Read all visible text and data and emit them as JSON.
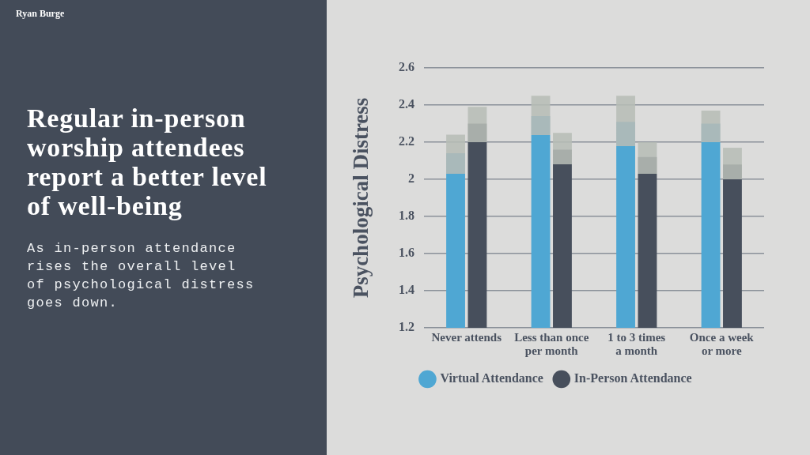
{
  "chart_data": {
    "type": "bar",
    "title": "Regular in-person worship attendees report a better level of well-being",
    "subtitle": "As in-person attendance rises the overall level of psychological distress goes down.",
    "ylabel": "Psychological Distress",
    "annotations": [
      "Ryan Burge"
    ],
    "categories": [
      "Never attends",
      "Less than once per month",
      "1 to 3 times a month",
      "Once a week or more"
    ],
    "series": [
      {
        "name": "Virtual Attendance",
        "color": "#4fa7d3",
        "values": [
          2.14,
          2.34,
          2.31,
          2.3
        ],
        "errors": [
          [
            2.03,
            2.24
          ],
          [
            2.24,
            2.45
          ],
          [
            2.18,
            2.45
          ],
          [
            2.2,
            2.37
          ]
        ]
      },
      {
        "name": "In-Person Attendance",
        "color": "#474f5c",
        "values": [
          2.3,
          2.16,
          2.12,
          2.08
        ],
        "errors": [
          [
            2.2,
            2.39
          ],
          [
            2.08,
            2.25
          ],
          [
            2.03,
            2.2
          ],
          [
            2.0,
            2.17
          ]
        ]
      }
    ],
    "ylim": [
      1.2,
      2.6
    ],
    "yticks": [
      1.2,
      1.4,
      1.6,
      1.8,
      2,
      2.2,
      2.4,
      2.6
    ],
    "grid": "y",
    "legend": "bottom"
  }
}
